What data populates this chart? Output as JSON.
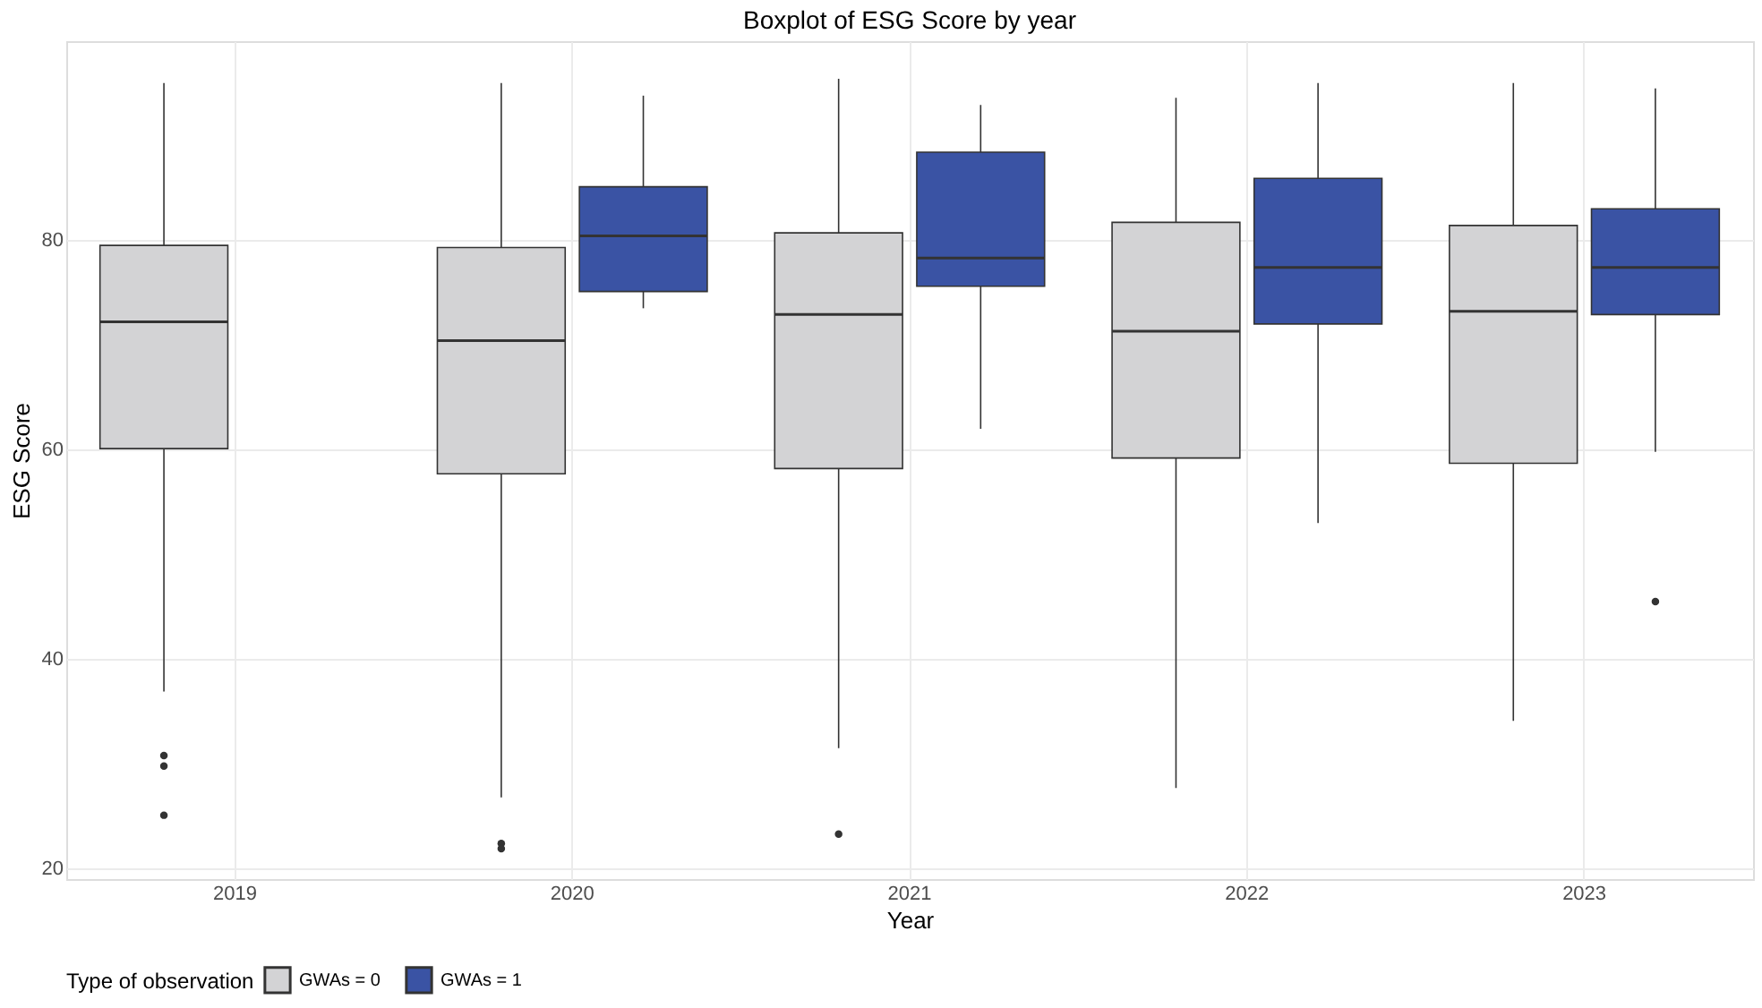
{
  "chart_data": {
    "type": "box",
    "title": "Boxplot of ESG Score by year",
    "xlabel": "Year",
    "ylabel": "ESG Score",
    "legend_title": "Type of observation",
    "categories": [
      "2019",
      "2020",
      "2021",
      "2022",
      "2023"
    ],
    "series": [
      {
        "name": "GWAs = 0",
        "color": "#d3d3d5",
        "boxes": [
          {
            "low": 36.9,
            "q1": 60.1,
            "median": 72.2,
            "q3": 79.5,
            "high": 95.0,
            "outliers": [
              30.8,
              29.8,
              25.1
            ]
          },
          {
            "low": 26.8,
            "q1": 57.7,
            "median": 70.4,
            "q3": 79.3,
            "high": 95.0,
            "outliers": [
              22.4,
              21.9
            ]
          },
          {
            "low": 31.5,
            "q1": 58.2,
            "median": 72.9,
            "q3": 80.7,
            "high": 95.4,
            "outliers": [
              23.3
            ]
          },
          {
            "low": 27.7,
            "q1": 59.2,
            "median": 71.3,
            "q3": 81.7,
            "high": 93.6
          },
          {
            "low": 34.1,
            "q1": 58.7,
            "median": 73.2,
            "q3": 81.4,
            "high": 95.0
          }
        ]
      },
      {
        "name": "GWAs = 1",
        "color": "#3a53a4",
        "boxes": [
          null,
          {
            "low": 73.5,
            "q1": 75.1,
            "median": 80.4,
            "q3": 85.1,
            "high": 93.8
          },
          {
            "low": 62.0,
            "q1": 75.6,
            "median": 78.3,
            "q3": 88.4,
            "high": 92.9
          },
          {
            "low": 53.0,
            "q1": 72.0,
            "median": 77.4,
            "q3": 85.9,
            "high": 95.0
          },
          {
            "low": 59.8,
            "q1": 72.9,
            "median": 77.4,
            "q3": 83.0,
            "high": 94.5,
            "outliers": [
              45.5
            ]
          }
        ]
      }
    ],
    "ylim": [
      19,
      99
    ],
    "yticks": [
      20,
      40,
      60,
      80
    ],
    "grid": true,
    "legend": "bottom"
  }
}
